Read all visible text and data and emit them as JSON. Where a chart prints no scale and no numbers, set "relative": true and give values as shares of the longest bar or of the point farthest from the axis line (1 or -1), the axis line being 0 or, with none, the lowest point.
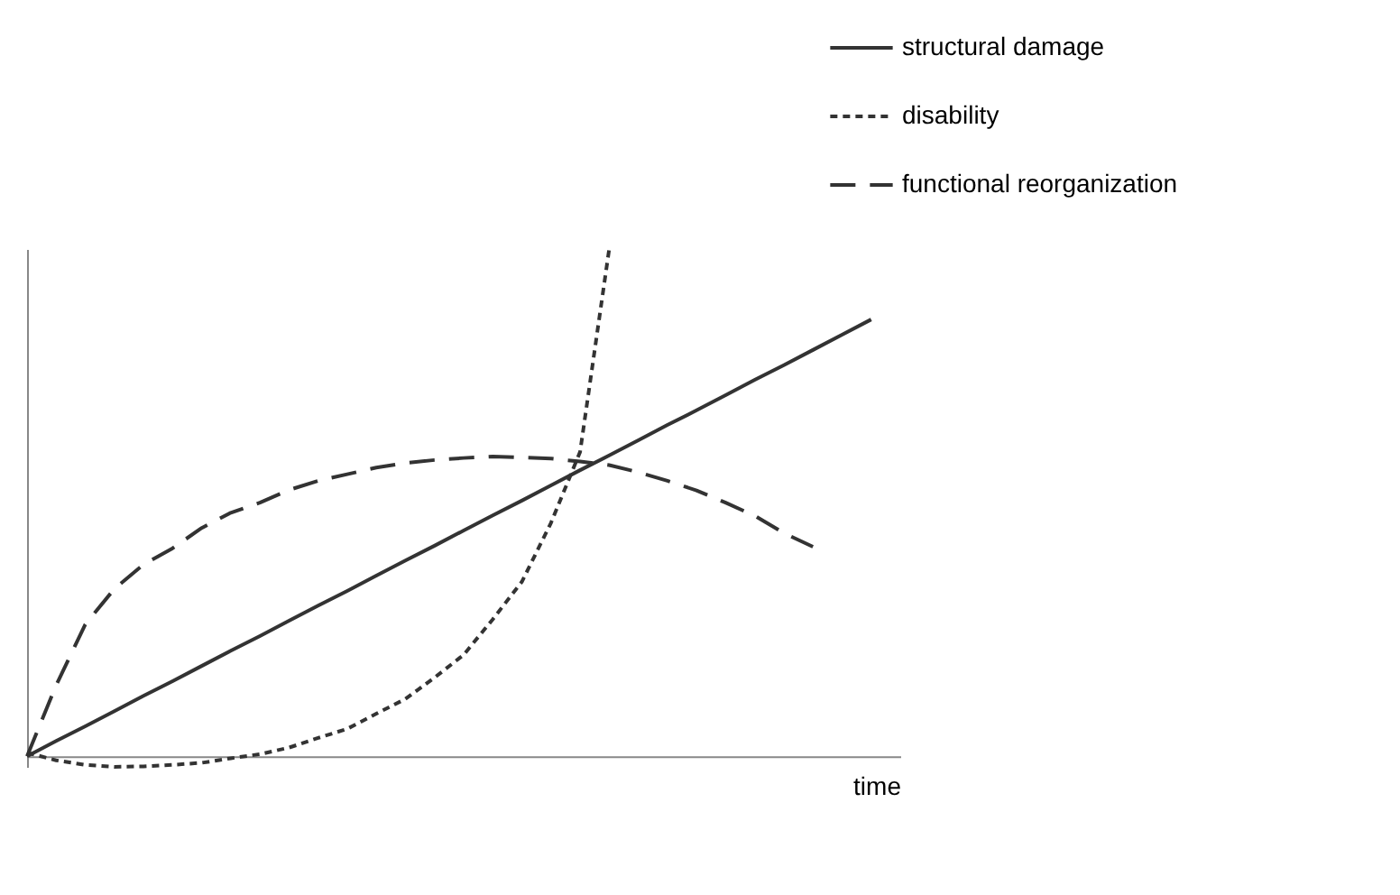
{
  "chart_data": {
    "type": "line",
    "relative": true,
    "xlabel": "time",
    "legend": "top right",
    "grid": false,
    "marker": "none",
    "categories": [
      null,
      null,
      null,
      null,
      null,
      null,
      null,
      null,
      null,
      null,
      null,
      null,
      null,
      null,
      null,
      null,
      null,
      null,
      null,
      null,
      null,
      null,
      null,
      null,
      null,
      null,
      null,
      null,
      null,
      null,
      null
    ],
    "series": [
      {
        "name": "structural damage",
        "color": "#333333",
        "line_style": "solid",
        "values": [
          0,
          0.03,
          0.059,
          0.089,
          0.119,
          0.148,
          0.178,
          0.208,
          0.237,
          0.267,
          0.297,
          0.326,
          0.356,
          0.386,
          0.415,
          0.445,
          0.475,
          0.504,
          0.534,
          0.564,
          0.593,
          0.623,
          0.653,
          0.682,
          0.712,
          0.742,
          0.771,
          0.801,
          0.831,
          0.861,
          null
        ]
      },
      {
        "name": "disability",
        "color": "#333333",
        "line_style": "dotted",
        "values": [
          0.007,
          -0.008,
          -0.017,
          -0.021,
          -0.02,
          -0.017,
          -0.013,
          -0.004,
          0.004,
          0.017,
          0.036,
          0.054,
          0.084,
          0.113,
          0.155,
          0.2,
          0.27,
          0.344,
          0.46,
          0.6,
          1,
          null,
          null,
          null,
          null,
          null,
          null,
          null,
          null,
          null,
          null
        ]
      },
      {
        "name": "functional reorganization",
        "color": "#333333",
        "line_style": "dashed",
        "values": [
          0,
          0.14,
          0.26,
          0.33,
          0.378,
          0.41,
          0.45,
          0.48,
          0.5,
          0.525,
          0.543,
          0.556,
          0.569,
          0.578,
          0.584,
          0.588,
          0.591,
          0.589,
          0.587,
          0.581,
          0.574,
          0.56,
          0.543,
          0.524,
          0.5,
          0.474,
          0.44,
          0.413,
          null,
          null,
          null
        ]
      }
    ]
  }
}
